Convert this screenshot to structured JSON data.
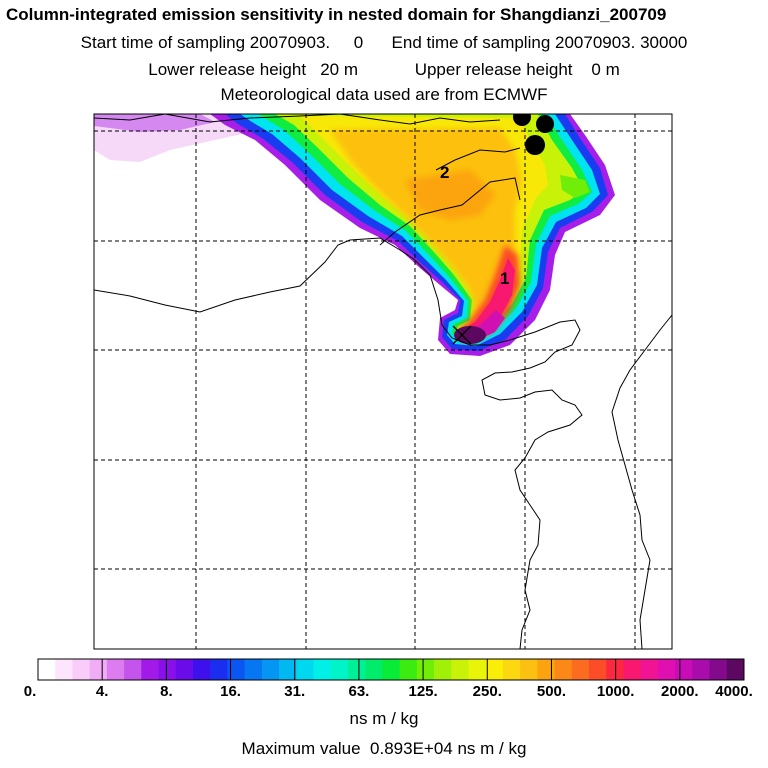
{
  "header": {
    "title": "Column-integrated emission sensitivity in nested domain for Shangdianzi_200709",
    "sampling": "Start time of sampling 20070903.     0      End time of sampling 20070903. 30000",
    "release": "Lower release height   20 m            Upper release height    0 m",
    "met": "Meteorological data used are from ECMWF"
  },
  "map": {
    "markers": [
      "1",
      "2"
    ]
  },
  "legend": {
    "ticks": [
      "0.",
      "4.",
      "8.",
      "16.",
      "31.",
      "63.",
      "125.",
      "250.",
      "500.",
      "1000.",
      "2000.",
      "4000."
    ],
    "colors": [
      "#ffffff",
      "#fde6fd",
      "#f9ccf9",
      "#f0acf5",
      "#dc7cf0",
      "#c554ec",
      "#a21ae8",
      "#8a10ea",
      "#6a0cea",
      "#3d10ec",
      "#1b2ef0",
      "#0a56f2",
      "#0676f2",
      "#0496f2",
      "#02b8f2",
      "#00d8f0",
      "#00f0e8",
      "#00f4c8",
      "#00f098",
      "#00ec6a",
      "#08ec38",
      "#3cec10",
      "#70ee08",
      "#a0f008",
      "#c8f208",
      "#e8f408",
      "#f8ee08",
      "#fcd810",
      "#fcc010",
      "#fca410",
      "#fc8818",
      "#fc6c20",
      "#fc4c28",
      "#fc2840",
      "#f81870",
      "#f01494",
      "#e010b0",
      "#c80cb8",
      "#a80caa",
      "#840a8c",
      "#5c0860"
    ],
    "unit": "ns m / kg"
  },
  "footer": {
    "max_value": "Maximum value  0.893E+04 ns m / kg"
  }
}
